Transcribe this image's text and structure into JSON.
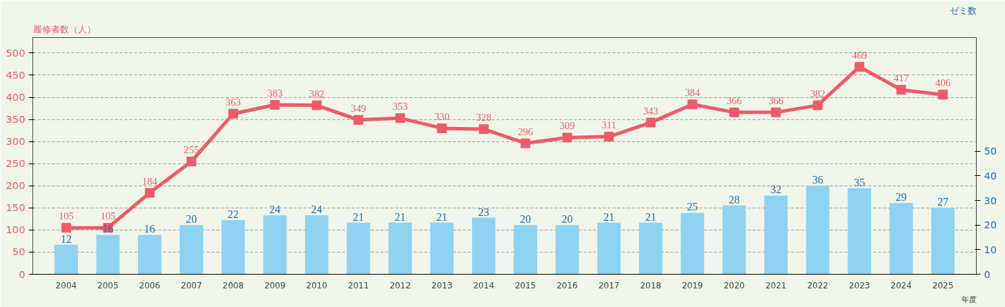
{
  "chart_data": {
    "type": "bar",
    "ylabel": "履修者数（人）",
    "y2label": "ゼミ数",
    "xlabel": "年度",
    "categories": [
      "2004",
      "2005",
      "2006",
      "2007",
      "2008",
      "2009",
      "2010",
      "2011",
      "2012",
      "2013",
      "2014",
      "2015",
      "2016",
      "2017",
      "2018",
      "2019",
      "2020",
      "2021",
      "2022",
      "2023",
      "2024",
      "2025"
    ],
    "series": [
      {
        "axis": "y2",
        "color": "#8fd3f2",
        "data_labels": true,
        "values": [
          12,
          16,
          16,
          20,
          22,
          24,
          24,
          21,
          21,
          21,
          23,
          20,
          20,
          21,
          21,
          25,
          28,
          32,
          36,
          35,
          29,
          27
        ]
      },
      {
        "type": "line",
        "color": "#f05a68",
        "marker": "square",
        "line_style": "solid",
        "data_labels": true,
        "values": [
          105,
          105,
          184,
          255,
          363,
          383,
          382,
          349,
          353,
          330,
          328,
          296,
          309,
          311,
          343,
          384,
          366,
          366,
          382,
          469,
          417,
          406
        ]
      }
    ],
    "ylim": [
      0,
      535
    ],
    "yticks": [
      0,
      50,
      100,
      150,
      200,
      250,
      300,
      350,
      400,
      450,
      500
    ],
    "y2lim": [
      0,
      96.25
    ],
    "y2ticks": [
      0,
      10,
      20,
      30,
      40,
      50
    ],
    "grid": "y",
    "legend": false
  }
}
